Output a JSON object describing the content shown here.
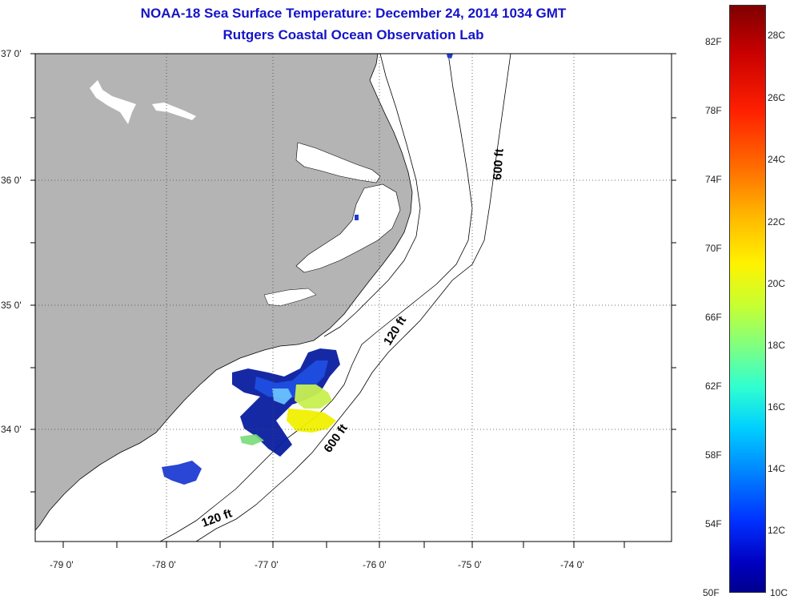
{
  "title": {
    "line1": "NOAA-18 Sea Surface Temperature:  December 24, 2014 1034 GMT",
    "line2": "Rutgers Coastal Ocean Observation Lab"
  },
  "latitude_labels": [
    "37 0'",
    "36 0'",
    "35 0'",
    "34 0'"
  ],
  "longitude_labels": [
    "-79 0'",
    "-78 0'",
    "-77 0'",
    "-76 0'",
    "-75 0'",
    "-74 0'"
  ],
  "depth_contours": {
    "shelf_label": "120 ft",
    "slope_label": "600 ft"
  },
  "colorbar": {
    "fahrenheit_labels": [
      "82F",
      "78F",
      "74F",
      "70F",
      "66F",
      "62F",
      "58F",
      "54F",
      "50F"
    ],
    "celsius_labels": [
      "28C",
      "26C",
      "24C",
      "22C",
      "20C",
      "18C",
      "16C",
      "14C",
      "12C",
      "10C"
    ]
  },
  "colors": {
    "land": "#b4b4b4",
    "ocean": "#ffffff",
    "title": "#1414c8",
    "sst_cold": "#0a1ea0",
    "sst_cool": "#1e50e6",
    "sst_mid": "#6ec8ff",
    "sst_warm": "#c8f050",
    "sst_yellow": "#f0f000"
  }
}
